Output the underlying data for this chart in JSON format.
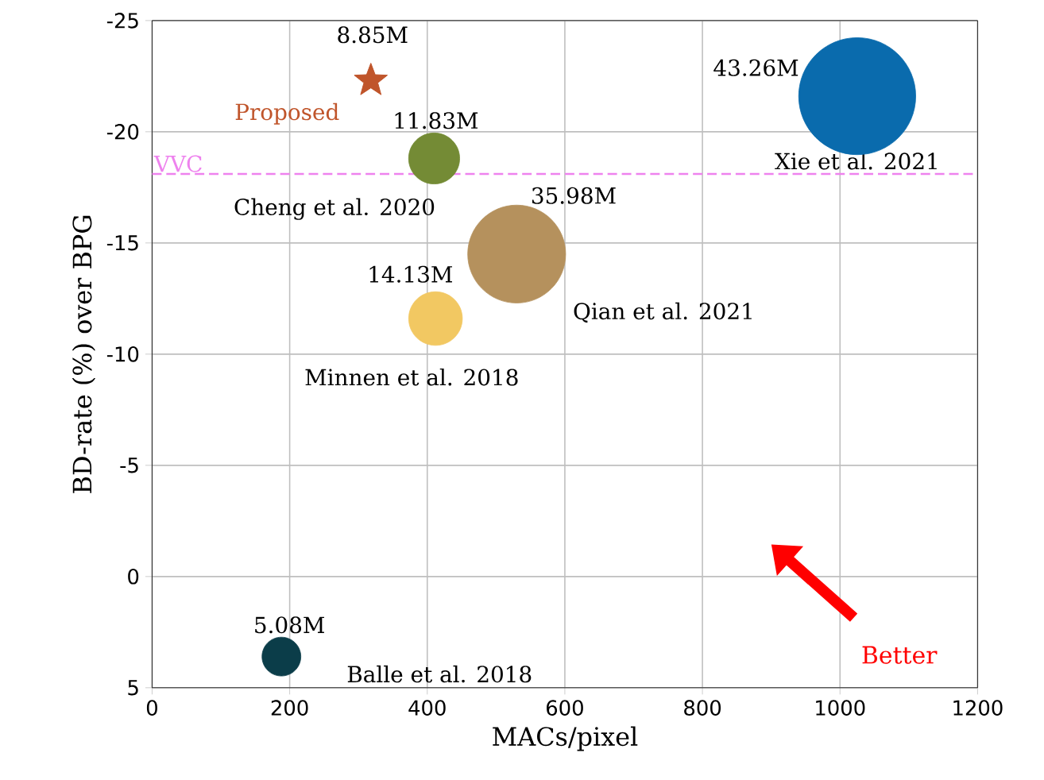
{
  "chart_data": {
    "type": "bubble",
    "xlabel": "MACs/pixel",
    "ylabel": "BD-rate (%) over BPG",
    "xlim": [
      0,
      1200
    ],
    "xticks": [
      0,
      200,
      400,
      600,
      800,
      1000,
      1200
    ],
    "ylim": [
      5,
      -25
    ],
    "yticks": [
      -25,
      -20,
      -15,
      -10,
      -5,
      0,
      5
    ],
    "grid": true,
    "series": [
      {
        "name": "Proposed",
        "type": "scatter",
        "marker": "star",
        "color": "#c0552b",
        "x": [
          318
        ],
        "values": [
          -22.3
        ]
      },
      {
        "name": "Xie et al. 2021",
        "color": "#0a6bad",
        "x": [
          1025
        ],
        "values": [
          -21.6
        ],
        "sizes": [
          1
        ]
      },
      {
        "name": "Cheng et al. 2020",
        "color": "#748b35",
        "x": [
          410
        ],
        "values": [
          -18.8
        ],
        "sizes": [
          0.19
        ]
      },
      {
        "name": "Qian et al. 2021",
        "color": "#b5915d",
        "x": [
          530
        ],
        "values": [
          -14.5
        ],
        "sizes": [
          0.7
        ]
      },
      {
        "name": "Minnen et al. 2018",
        "color": "#f2c862",
        "x": [
          412
        ],
        "values": [
          -11.6
        ],
        "sizes": [
          0.21
        ]
      },
      {
        "name": "Balle et al. 2018",
        "color": "#0b3d49",
        "x": [
          188
        ],
        "values": [
          3.6
        ],
        "sizes": [
          0.11
        ]
      }
    ],
    "ref_lines": [
      {
        "axis": "y",
        "value": -18.1,
        "label": "VVC",
        "color": "#ee82ee",
        "line_style": "dashed"
      }
    ],
    "annotations": [
      {
        "text": "8.85M",
        "x": 318,
        "y": -22.3
      },
      {
        "text": "43.26M",
        "x": 1025,
        "y": -21.6
      },
      {
        "text": "11.83M",
        "x": 410,
        "y": -18.8
      },
      {
        "text": "35.98M",
        "x": 530,
        "y": -14.5
      },
      {
        "text": "14.13M",
        "x": 412,
        "y": -11.6
      },
      {
        "text": "5.08M",
        "x": 188,
        "y": 3.6
      },
      "Better"
    ]
  }
}
